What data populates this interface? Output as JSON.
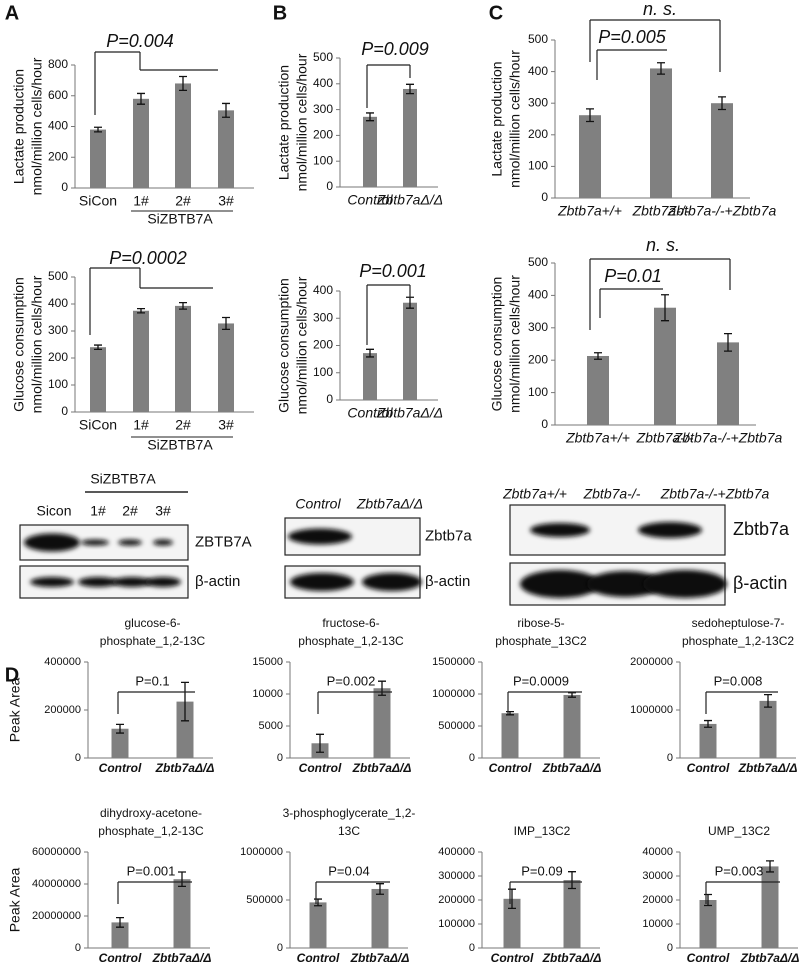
{
  "panels": [
    "A",
    "B",
    "C",
    "D"
  ],
  "chart_data": [
    {
      "type": "bar",
      "ylabel": [
        "Lactate production",
        "nmol/million cells/hour"
      ],
      "categories": [
        "SiCon",
        "1#",
        "2#",
        "3#"
      ],
      "group_label": "SiZBTB7A",
      "values": [
        380,
        580,
        680,
        505
      ],
      "errors": [
        15,
        35,
        45,
        45
      ],
      "color": "#808080",
      "ylim": [
        0,
        800
      ],
      "yticks": [
        0,
        200,
        400,
        600,
        800
      ],
      "annotations": [
        "P=0.004"
      ]
    },
    {
      "type": "bar",
      "ylabel": [
        "Glucose consumption",
        "nmol/million cells/hour"
      ],
      "categories": [
        "SiCon",
        "1#",
        "2#",
        "3#"
      ],
      "group_label": "SiZBTB7A",
      "values": [
        240,
        375,
        393,
        328
      ],
      "errors": [
        8,
        8,
        12,
        22
      ],
      "color": "#808080",
      "ylim": [
        0,
        500
      ],
      "yticks": [
        0,
        100,
        200,
        300,
        400,
        500
      ],
      "annotations": [
        "P=0.0002"
      ]
    },
    {
      "type": "bar",
      "ylabel": [
        "Lactate production",
        "nmol/million cells/hour"
      ],
      "categories": [
        "Control",
        "Zbtb7aΔ/Δ"
      ],
      "values": [
        272,
        380
      ],
      "errors": [
        15,
        18
      ],
      "color": "#808080",
      "ylim": [
        0,
        500
      ],
      "yticks": [
        0,
        100,
        200,
        300,
        400,
        500
      ],
      "annotations": [
        "P=0.009"
      ]
    },
    {
      "type": "bar",
      "ylabel": [
        "Glucose consumption",
        "nmol/million cells/hour"
      ],
      "categories": [
        "Control",
        "Zbtb7aΔ/Δ"
      ],
      "values": [
        172,
        357
      ],
      "errors": [
        14,
        20
      ],
      "color": "#808080",
      "ylim": [
        0,
        400
      ],
      "yticks": [
        0,
        100,
        200,
        300,
        400
      ],
      "annotations": [
        "P=0.001"
      ]
    },
    {
      "type": "bar",
      "ylabel": [
        "Lactate production",
        "nmol/million cells/hour"
      ],
      "categories": [
        "Zbtb7a+/+",
        "Zbtb7a-/-",
        "Zbtb7a-/-+Zbtb7a"
      ],
      "values": [
        262,
        410,
        300
      ],
      "errors": [
        20,
        18,
        20
      ],
      "color": "#808080",
      "ylim": [
        0,
        500
      ],
      "yticks": [
        0,
        100,
        200,
        300,
        400,
        500
      ],
      "annotations": [
        "n. s.",
        "P=0.005"
      ]
    },
    {
      "type": "bar",
      "ylabel": [
        "Glucose consumption",
        "nmol/million cells/hour"
      ],
      "categories": [
        "Zbtb7a+/+",
        "Zbtb7a-/-",
        "Zbtb7a-/-+Zbtb7a"
      ],
      "values": [
        213,
        362,
        255
      ],
      "errors": [
        10,
        40,
        27
      ],
      "color": "#808080",
      "ylim": [
        0,
        500
      ],
      "yticks": [
        0,
        100,
        200,
        300,
        400,
        500
      ],
      "annotations": [
        "n. s.",
        "P=0.01"
      ]
    },
    {
      "type": "bar",
      "ylabel": [
        "Peak Area"
      ],
      "title": [
        "glucose-6-",
        "phosphate_1,2-13C"
      ],
      "categories": [
        "Control",
        "Zbtb7aΔ/Δ"
      ],
      "values": [
        122000,
        235000
      ],
      "errors": [
        18000,
        80000
      ],
      "color": "#808080",
      "ylim": [
        0,
        400000
      ],
      "yticks": [
        0,
        200000,
        400000
      ],
      "annotations": [
        "P=0.1"
      ]
    },
    {
      "type": "bar",
      "title": [
        "fructose-6-",
        "phosphate_1,2-13C"
      ],
      "categories": [
        "Control",
        "Zbtb7aΔ/Δ"
      ],
      "values": [
        2300,
        10900
      ],
      "errors": [
        1400,
        1100
      ],
      "color": "#808080",
      "ylim": [
        0,
        15000
      ],
      "yticks": [
        0,
        5000,
        10000,
        15000
      ],
      "annotations": [
        "P=0.002"
      ]
    },
    {
      "type": "bar",
      "title": [
        "ribose-5-",
        "phosphate_13C2"
      ],
      "categories": [
        "Control",
        "Zbtb7aΔ/Δ"
      ],
      "values": [
        700000,
        985000
      ],
      "errors": [
        25000,
        35000
      ],
      "color": "#808080",
      "ylim": [
        0,
        1500000
      ],
      "yticks": [
        0,
        500000,
        1000000,
        1500000
      ],
      "annotations": [
        "P=0.0009"
      ]
    },
    {
      "type": "bar",
      "title": [
        "sedoheptulose-7-",
        "phosphate_1,2-13C2"
      ],
      "categories": [
        "Control",
        "Zbtb7aΔ/Δ"
      ],
      "values": [
        710000,
        1190000
      ],
      "errors": [
        70000,
        130000
      ],
      "color": "#808080",
      "ylim": [
        0,
        2000000
      ],
      "yticks": [
        0,
        1000000,
        2000000
      ],
      "annotations": [
        "P=0.008"
      ]
    },
    {
      "type": "bar",
      "ylabel": [
        "Peak Area"
      ],
      "title": [
        "dihydroxy-acetone-",
        "phosphate_1,2-13C"
      ],
      "categories": [
        "Control",
        "Zbtb7aΔ/Δ"
      ],
      "values": [
        16000000,
        43000000
      ],
      "errors": [
        3000000,
        4500000
      ],
      "color": "#808080",
      "ylim": [
        0,
        60000000
      ],
      "yticks": [
        0,
        20000000,
        40000000,
        60000000
      ],
      "annotations": [
        "P=0.001"
      ]
    },
    {
      "type": "bar",
      "title": [
        "3-phosphoglycerate_1,2-",
        "13C"
      ],
      "categories": [
        "Control",
        "Zbtb7aΔ/Δ"
      ],
      "values": [
        475000,
        615000
      ],
      "errors": [
        35000,
        55000
      ],
      "color": "#808080",
      "ylim": [
        0,
        1000000
      ],
      "yticks": [
        0,
        500000,
        1000000
      ],
      "annotations": [
        "P=0.04"
      ]
    },
    {
      "type": "bar",
      "title": [
        "IMP_13C2"
      ],
      "categories": [
        "Control",
        "Zbtb7aΔ/Δ"
      ],
      "values": [
        205000,
        283000
      ],
      "errors": [
        40000,
        35000
      ],
      "color": "#808080",
      "ylim": [
        0,
        400000
      ],
      "yticks": [
        0,
        100000,
        200000,
        300000,
        400000
      ],
      "annotations": [
        "P=0.09"
      ]
    },
    {
      "type": "bar",
      "title": [
        "UMP_13C2"
      ],
      "categories": [
        "Control",
        "Zbtb7aΔ/Δ"
      ],
      "values": [
        20000,
        34000
      ],
      "errors": [
        2300,
        2300
      ],
      "color": "#808080",
      "ylim": [
        0,
        40000
      ],
      "yticks": [
        0,
        10000,
        20000,
        30000,
        40000
      ],
      "annotations": [
        "P=0.003"
      ]
    }
  ],
  "blots": [
    {
      "group_label": "SiZBTB7A",
      "lanes": [
        "Sicon",
        "1#",
        "2#",
        "3#"
      ],
      "rows": [
        "ZBTB7A",
        "β-actin"
      ]
    },
    {
      "lanes": [
        "Control",
        "Zbtb7aΔ/Δ"
      ],
      "rows": [
        "Zbtb7a",
        "β-actin"
      ]
    },
    {
      "lanes": [
        "Zbtb7a+/+",
        "Zbtb7a-/-",
        "Zbtb7a-/-+Zbtb7a"
      ],
      "rows": [
        "Zbtb7a",
        "β-actin"
      ]
    }
  ]
}
